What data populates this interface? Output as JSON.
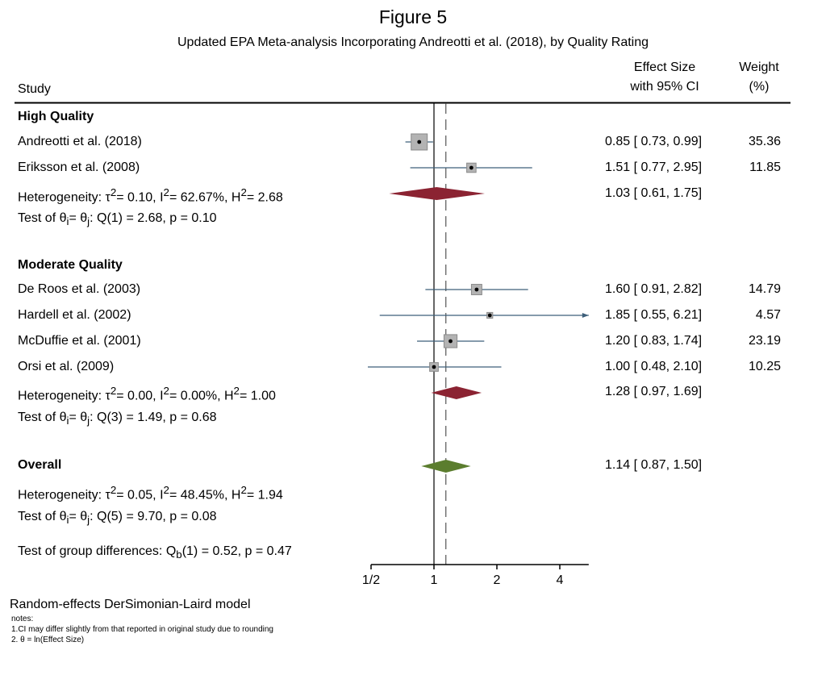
{
  "title": "Figure 5",
  "subtitle": "Updated EPA Meta-analysis Incorporating Andreotti et al. (2018), by Quality Rating",
  "headers": {
    "study": "Study",
    "effect_line1": "Effect Size",
    "effect_line2": "with 95% CI",
    "weight_line1": "Weight",
    "weight_line2": "(%)"
  },
  "groups": [
    {
      "label": "High Quality",
      "studies": [
        {
          "name": "Andreotti et al. (2018)",
          "es": 0.85,
          "lo": 0.73,
          "hi": 0.99,
          "text": "0.85 [ 0.73,  0.99]",
          "weight": "35.36",
          "w": 35.36
        },
        {
          "name": "Eriksson et al. (2008)",
          "es": 1.51,
          "lo": 0.77,
          "hi": 2.95,
          "text": "1.51 [ 0.77,  2.95]",
          "weight": "11.85",
          "w": 11.85
        }
      ],
      "het_main": "Heterogeneity: τ",
      "het_t2": "= 0.10, I",
      "het_i2": "= 62.67%, H",
      "het_h2": "= 2.68",
      "pooled": {
        "es": 1.03,
        "lo": 0.61,
        "hi": 1.75,
        "text": "1.03 [ 0.61,  1.75]"
      },
      "test_a": "Test of θ",
      "test_b": "= θ",
      "test_c": ": Q(1) = 2.68, p = 0.10"
    },
    {
      "label": "Moderate Quality",
      "studies": [
        {
          "name": "De Roos et al. (2003)",
          "es": 1.6,
          "lo": 0.91,
          "hi": 2.82,
          "text": "1.60 [ 0.91,  2.82]",
          "weight": "14.79",
          "w": 14.79
        },
        {
          "name": "Hardell et al. (2002)",
          "es": 1.85,
          "lo": 0.55,
          "hi": 6.21,
          "text": "1.85 [ 0.55,  6.21]",
          "weight": "4.57",
          "w": 4.57
        },
        {
          "name": "McDuffie et al. (2001)",
          "es": 1.2,
          "lo": 0.83,
          "hi": 1.74,
          "text": "1.20 [ 0.83,  1.74]",
          "weight": "23.19",
          "w": 23.19
        },
        {
          "name": "Orsi et al.  (2009)",
          "es": 1.0,
          "lo": 0.48,
          "hi": 2.1,
          "text": "1.00 [ 0.48,  2.10]",
          "weight": "10.25",
          "w": 10.25
        }
      ],
      "het_main": "Heterogeneity: τ",
      "het_t2": "= 0.00, I",
      "het_i2": "= 0.00%, H",
      "het_h2": "= 1.00",
      "pooled": {
        "es": 1.28,
        "lo": 0.97,
        "hi": 1.69,
        "text": "1.28 [ 0.97,  1.69]"
      },
      "test_a": "Test of θ",
      "test_b": "= θ",
      "test_c": ": Q(3) = 1.49, p = 0.68"
    }
  ],
  "overall": {
    "label": "Overall",
    "es": 1.14,
    "lo": 0.87,
    "hi": 1.5,
    "text": "1.14 [ 0.87,  1.50]",
    "het_main": "Heterogeneity: τ",
    "het_t2": "= 0.05, I",
    "het_i2": "= 48.45%, H",
    "het_h2": "= 1.94",
    "test_a": "Test of θ",
    "test_b": "= θ",
    "test_c": ": Q(5) = 9.70, p = 0.08",
    "group_a": "Test of group differences: Q",
    "group_b": "(1) = 0.52, p = 0.47"
  },
  "sup": {
    "two": "2",
    "i": "i",
    "j": "j",
    "b": "b"
  },
  "footer": {
    "model": "Random-effects DerSimonian-Laird model",
    "notes_label": "notes:",
    "note1": "1.CI may differ slightly from that reported in original study due to rounding",
    "note2": "2. θ = ln(Effect Size)"
  },
  "colors": {
    "group_diamond": "#8b2332",
    "overall_diamond": "#5b7d2e",
    "ci_line": "#3d5f7a",
    "box_fill": "#b3b3b3",
    "box_stroke": "#8a8a8a"
  },
  "chart_data": {
    "type": "forest",
    "title": "Figure 5",
    "subtitle": "Updated EPA Meta-analysis Incorporating Andreotti et al. (2018), by Quality Rating",
    "xscale": "log2",
    "xlim": [
      0.5,
      5.5
    ],
    "xticks": [
      0.5,
      1,
      2,
      4
    ],
    "xtick_labels": [
      "1/2",
      "1",
      "2",
      "4"
    ],
    "null_line": 1,
    "overall_line": 1.14
  }
}
